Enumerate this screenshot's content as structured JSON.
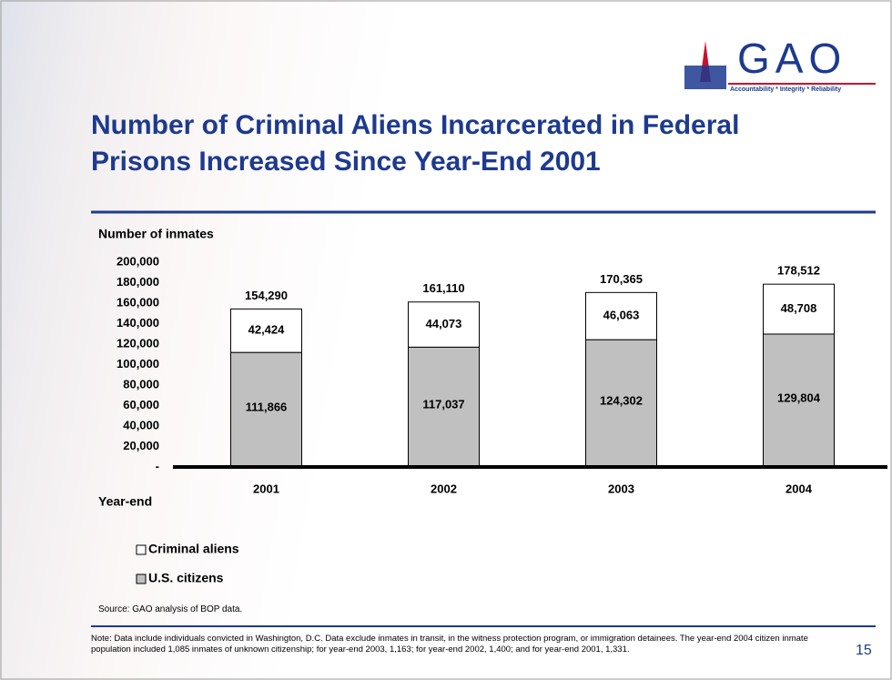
{
  "logo": "GAO",
  "tagline": "Accountability * Integrity * Reliability",
  "source": "Source: GAO analysis of BOP data.",
  "note": "Note: Data include individuals convicted in Washington, D.C.  Data exclude inmates in transit, in the witness protection program, or immigration detainees.  The year-end 2004 citizen inmate population included 1,085 inmates of unknown citizenship; for year-end 2003, 1,163; for year-end 2002, 1,400; and for year-end 2001, 1,331.",
  "page_number": "15",
  "chart_data": {
    "type": "stacked_bar",
    "title": "Number of Criminal Aliens Incarcerated in Federal Prisons Increased Since Year-End 2001",
    "y_label": "Number of inmates",
    "x_label": "Year-end",
    "categories": [
      "2001",
      "2002",
      "2003",
      "2004"
    ],
    "series": [
      {
        "name": "U.S. citizens",
        "color": "#c0c0c0",
        "values": [
          111866,
          117037,
          124302,
          129804
        ],
        "value_labels": [
          "111,866",
          "117,037",
          "124,302",
          "129,804"
        ]
      },
      {
        "name": "Criminal aliens",
        "color": "#ffffff",
        "values": [
          42424,
          44073,
          46063,
          48708
        ],
        "value_labels": [
          "42,424",
          "44,073",
          "46,063",
          "48,708"
        ]
      }
    ],
    "totals": {
      "values": [
        154290,
        161110,
        170365,
        178512
      ],
      "value_labels": [
        "154,290",
        "161,110",
        "170,365",
        "178,512"
      ]
    },
    "ylim": [
      0,
      200000
    ],
    "yticks": [
      {
        "value": 0,
        "label": "-"
      },
      {
        "value": 20000,
        "label": "20,000"
      },
      {
        "value": 40000,
        "label": "40,000"
      },
      {
        "value": 60000,
        "label": "60,000"
      },
      {
        "value": 80000,
        "label": "80,000"
      },
      {
        "value": 100000,
        "label": "100,000"
      },
      {
        "value": 120000,
        "label": "120,000"
      },
      {
        "value": 140000,
        "label": "140,000"
      },
      {
        "value": 160000,
        "label": "160,000"
      },
      {
        "value": 180000,
        "label": "180,000"
      },
      {
        "value": 200000,
        "label": "200,000"
      }
    ]
  }
}
